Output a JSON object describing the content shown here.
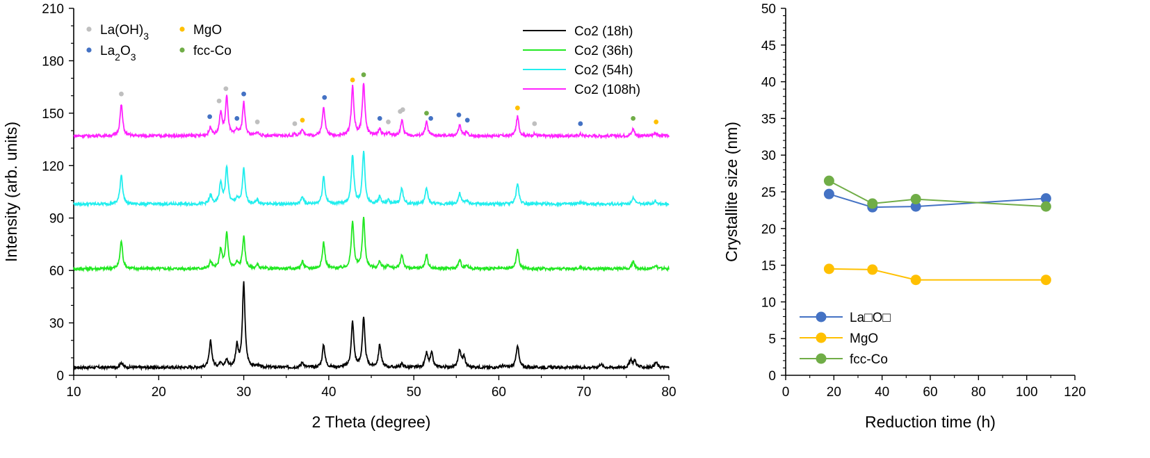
{
  "chart_data": [
    {
      "type": "line",
      "xlabel": "2 Theta (degree)",
      "ylabel": "Intensity (arb. units)",
      "xlim": [
        10,
        80
      ],
      "ylim": [
        0,
        210
      ],
      "xticks": [
        "10",
        "20",
        "30",
        "40",
        "50",
        "60",
        "70",
        "80"
      ],
      "yticks": [
        "0",
        "30",
        "60",
        "90",
        "120",
        "150",
        "180",
        "210"
      ],
      "legend_position": "top-right",
      "series": [
        {
          "name": "Co2 (18h)",
          "color": "#000000",
          "baseline": 4.5,
          "peaks": [
            [
              15.6,
              3
            ],
            [
              26.1,
              15
            ],
            [
              27.3,
              3
            ],
            [
              28.0,
              4
            ],
            [
              29.2,
              12
            ],
            [
              30.0,
              48
            ],
            [
              31.6,
              1
            ],
            [
              36.9,
              3
            ],
            [
              39.4,
              13
            ],
            [
              42.8,
              26
            ],
            [
              44.1,
              28
            ],
            [
              46.0,
              13
            ],
            [
              48.6,
              2
            ],
            [
              51.5,
              8
            ],
            [
              52.1,
              8
            ],
            [
              55.4,
              10
            ],
            [
              55.9,
              6
            ],
            [
              60.5,
              1
            ],
            [
              62.2,
              13
            ],
            [
              72.0,
              2
            ],
            [
              75.5,
              4
            ],
            [
              76.0,
              4
            ],
            [
              78.5,
              3
            ]
          ]
        },
        {
          "name": "Co2 (36h)",
          "color": "#22e822",
          "baseline": 61,
          "peaks": [
            [
              15.6,
              16
            ],
            [
              26.1,
              4
            ],
            [
              27.3,
              11
            ],
            [
              28.0,
              20
            ],
            [
              29.2,
              3
            ],
            [
              30.0,
              18
            ],
            [
              31.6,
              2
            ],
            [
              36.9,
              4
            ],
            [
              39.4,
              15
            ],
            [
              42.8,
              27
            ],
            [
              44.1,
              29
            ],
            [
              46.0,
              4
            ],
            [
              47.0,
              2
            ],
            [
              48.6,
              8
            ],
            [
              51.5,
              8
            ],
            [
              55.4,
              5
            ],
            [
              56.2,
              2
            ],
            [
              62.2,
              11
            ],
            [
              69.6,
              1
            ],
            [
              75.8,
              4
            ],
            [
              78.4,
              2
            ]
          ]
        },
        {
          "name": "Co2 (54h)",
          "color": "#22eeee",
          "baseline": 98,
          "peaks": [
            [
              15.6,
              17
            ],
            [
              26.1,
              5
            ],
            [
              27.3,
              12
            ],
            [
              28.0,
              21
            ],
            [
              29.2,
              3
            ],
            [
              30.0,
              20
            ],
            [
              31.6,
              2
            ],
            [
              36.9,
              4
            ],
            [
              39.4,
              16
            ],
            [
              42.8,
              28
            ],
            [
              44.1,
              30
            ],
            [
              46.0,
              4
            ],
            [
              47.0,
              2
            ],
            [
              48.6,
              9
            ],
            [
              51.5,
              9
            ],
            [
              55.4,
              6
            ],
            [
              56.2,
              2
            ],
            [
              62.2,
              12
            ],
            [
              69.6,
              1
            ],
            [
              75.8,
              4
            ],
            [
              78.4,
              2
            ]
          ]
        },
        {
          "name": "Co2 (108h)",
          "color": "#ff22ff",
          "baseline": 137,
          "peaks": [
            [
              15.6,
              18
            ],
            [
              26.1,
              5
            ],
            [
              27.3,
              13
            ],
            [
              28.0,
              22
            ],
            [
              29.2,
              3
            ],
            [
              30.0,
              19
            ],
            [
              31.6,
              2
            ],
            [
              36.0,
              1
            ],
            [
              36.9,
              4
            ],
            [
              39.4,
              17
            ],
            [
              42.8,
              28
            ],
            [
              44.1,
              30
            ],
            [
              46.0,
              4
            ],
            [
              47.0,
              2
            ],
            [
              48.6,
              9
            ],
            [
              51.5,
              8
            ],
            [
              55.4,
              6
            ],
            [
              56.2,
              2
            ],
            [
              62.2,
              11
            ],
            [
              64.2,
              1
            ],
            [
              69.6,
              1
            ],
            [
              75.8,
              4
            ],
            [
              78.4,
              2
            ]
          ]
        }
      ],
      "markers": [
        {
          "phase": "La(OH)3",
          "color": "#bfbfbf",
          "points": [
            [
              15.6,
              161
            ],
            [
              27.1,
              157
            ],
            [
              27.9,
              164
            ],
            [
              31.6,
              145
            ],
            [
              36.0,
              144
            ],
            [
              47.0,
              145
            ],
            [
              48.4,
              151
            ],
            [
              48.7,
              152
            ],
            [
              64.2,
              144
            ]
          ]
        },
        {
          "phase": "La2O3",
          "color": "#4472c4",
          "points": [
            [
              26.0,
              148
            ],
            [
              29.2,
              147
            ],
            [
              30.0,
              161
            ],
            [
              39.5,
              159
            ],
            [
              46.0,
              147
            ],
            [
              52.0,
              147
            ],
            [
              55.3,
              149
            ],
            [
              56.3,
              146
            ],
            [
              69.6,
              144
            ]
          ]
        },
        {
          "phase": "MgO",
          "color": "#ffc000",
          "points": [
            [
              36.9,
              146
            ],
            [
              42.8,
              169
            ],
            [
              62.2,
              153
            ],
            [
              78.5,
              145
            ]
          ]
        },
        {
          "phase": "fcc-Co",
          "color": "#70ad47",
          "points": [
            [
              44.1,
              172
            ],
            [
              51.5,
              150
            ],
            [
              75.8,
              147
            ]
          ]
        }
      ],
      "marker_legend": [
        {
          "color": "#bfbfbf",
          "label": "La(OH)",
          "sub": "3",
          "after": ""
        },
        {
          "color": "#ffc000",
          "label": "MgO",
          "sub": "",
          "after": ""
        },
        {
          "color": "#4472c4",
          "label": "La",
          "sub": "2",
          "after": "O",
          "sub2": "3"
        },
        {
          "color": "#70ad47",
          "label": "fcc-Co",
          "sub": "",
          "after": ""
        }
      ]
    },
    {
      "type": "line",
      "xlabel": "Reduction time (h)",
      "ylabel": "Crystallite size (nm)",
      "xlim": [
        0,
        120
      ],
      "ylim": [
        0,
        50
      ],
      "xticks": [
        "0",
        "20",
        "40",
        "60",
        "80",
        "100",
        "120"
      ],
      "yticks": [
        "0",
        "5",
        "10",
        "15",
        "20",
        "25",
        "30",
        "35",
        "40",
        "45",
        "50"
      ],
      "legend_position": "bottom-left",
      "x": [
        18,
        36,
        54,
        108
      ],
      "series": [
        {
          "name": "La□O□",
          "color": "#4472c4",
          "values": [
            24.7,
            22.9,
            23.0,
            24.1
          ]
        },
        {
          "name": "MgO",
          "color": "#ffc000",
          "values": [
            14.5,
            14.4,
            13.0,
            13.0
          ]
        },
        {
          "name": "fcc-Co",
          "color": "#70ad47",
          "values": [
            26.5,
            23.4,
            24.0,
            23.0
          ]
        }
      ]
    }
  ]
}
